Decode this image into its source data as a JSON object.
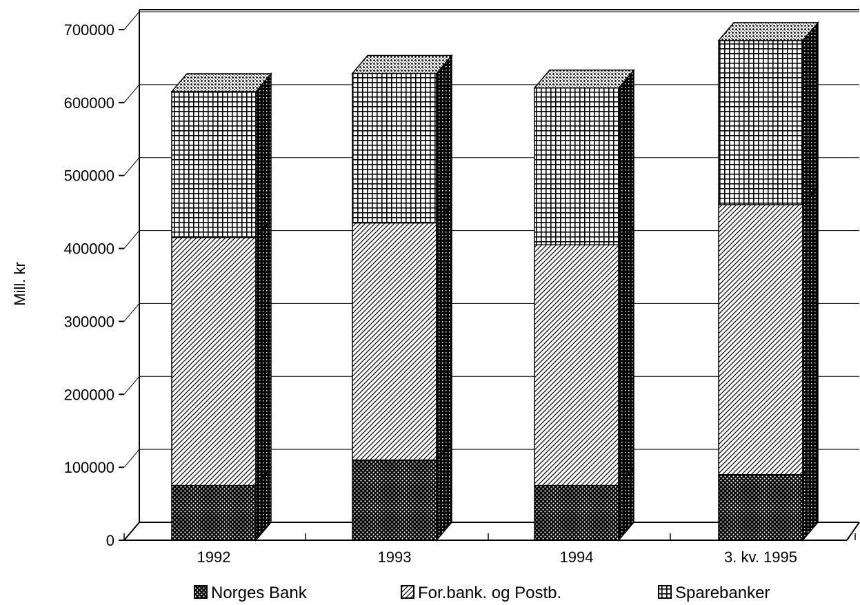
{
  "chart_data": {
    "type": "bar",
    "stacked": true,
    "three_d": true,
    "categories": [
      "1992",
      "1993",
      "1994",
      "3. kv. 1995"
    ],
    "series": [
      {
        "name": "Norges Bank",
        "pattern": "dots",
        "values": [
          75000,
          110000,
          75000,
          90000
        ]
      },
      {
        "name": "For.bank. og Postb.",
        "pattern": "diagonal",
        "values": [
          340000,
          325000,
          330000,
          370000
        ]
      },
      {
        "name": "Sparebanker",
        "pattern": "grid",
        "values": [
          200000,
          205000,
          215000,
          225000
        ]
      }
    ],
    "ylabel": "Mill. kr",
    "ylim": [
      0,
      700000
    ],
    "yticks": [
      0,
      100000,
      200000,
      300000,
      400000,
      500000,
      600000,
      700000
    ],
    "grid": true,
    "legend_position": "bottom"
  }
}
